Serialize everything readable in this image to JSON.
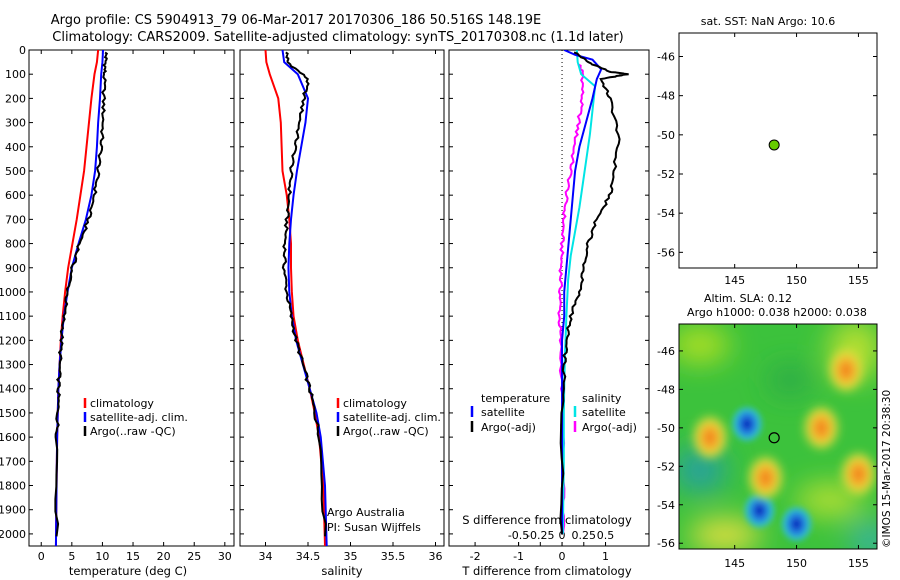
{
  "figure": {
    "title_line1": "Argo profile: CS 5904913_79 06-Mar-2017 20170306_186 50.516S 148.19E",
    "title_line2": "Climatology: CARS2009. Satellite-adjusted climatology: synTS_20170308.nc (1.1d later)",
    "credit": "Argo Australia",
    "pi": "PI: Susan Wijffels",
    "watermark": "©IMOS 15-Mar-2017 20:38:30"
  },
  "colors": {
    "climatology": "#ff0000",
    "satellite": "#0000ff",
    "argo": "#000000",
    "sal_satellite": "#00e5e5",
    "sal_argo": "#ff00ff",
    "float_marker": "#66cc00"
  },
  "chart_data": [
    {
      "id": "temperature",
      "type": "line",
      "xlabel": "temperature (deg C)",
      "xlim": [
        -2,
        31.5
      ],
      "ylim": [
        2050,
        0
      ],
      "xticks": [
        0,
        5,
        10,
        15,
        20,
        25,
        30
      ],
      "yticks": [
        0,
        100,
        200,
        300,
        400,
        500,
        600,
        700,
        800,
        900,
        1000,
        1100,
        1200,
        1300,
        1400,
        1500,
        1600,
        1700,
        1800,
        1900,
        2000
      ],
      "legend": [
        "climatology",
        "satellite-adj. clim.",
        "Argo(..raw -QC)"
      ],
      "series": [
        {
          "name": "climatology",
          "color": "#ff0000",
          "x": [
            9.3,
            9.1,
            8.7,
            8.2,
            7.8,
            7.4,
            7.0,
            6.4,
            5.8,
            5.1,
            4.4,
            3.9,
            3.5,
            3.2,
            3.0,
            2.8,
            2.7,
            2.6,
            2.5,
            2.4
          ],
          "y": [
            0,
            50,
            100,
            200,
            300,
            400,
            500,
            600,
            700,
            800,
            900,
            1000,
            1100,
            1200,
            1300,
            1400,
            1500,
            1600,
            1800,
            2050
          ]
        },
        {
          "name": "satellite-adj. clim.",
          "color": "#0000ff",
          "x": [
            10.1,
            10.0,
            9.8,
            9.6,
            9.3,
            9.1,
            8.8,
            8.2,
            7.3,
            6.1,
            5.0,
            4.3,
            3.7,
            3.3,
            3.0,
            2.8,
            2.7,
            2.6,
            2.5,
            2.4
          ],
          "y": [
            0,
            50,
            100,
            200,
            300,
            400,
            500,
            600,
            700,
            800,
            900,
            1000,
            1100,
            1200,
            1300,
            1400,
            1500,
            1600,
            1800,
            2050
          ]
        },
        {
          "name": "Argo(..raw -QC)",
          "color": "#000000",
          "x": [
            10.6,
            10.5,
            10.3,
            10.2,
            10.1,
            9.8,
            9.3,
            8.7,
            7.7,
            6.3,
            5.1,
            4.3,
            3.7,
            3.3,
            3.0,
            2.8,
            2.7,
            2.6,
            2.5
          ],
          "y": [
            10,
            50,
            100,
            200,
            300,
            400,
            500,
            600,
            700,
            800,
            900,
            1000,
            1100,
            1200,
            1300,
            1400,
            1500,
            1600,
            2010
          ]
        }
      ]
    },
    {
      "id": "salinity",
      "type": "line",
      "xlabel": "salinity",
      "xlim": [
        33.7,
        36.1
      ],
      "ylim": [
        2050,
        0
      ],
      "xticks": [
        34,
        34.5,
        35,
        35.5,
        36
      ],
      "legend": [
        "climatology",
        "satellite-adj. clim.",
        "Argo(..raw -QC)"
      ],
      "series": [
        {
          "name": "climatology",
          "color": "#ff0000",
          "x": [
            34.0,
            34.01,
            34.05,
            34.15,
            34.18,
            34.19,
            34.2,
            34.25,
            34.28,
            34.3,
            34.3,
            34.31,
            34.33,
            34.38,
            34.45,
            34.52,
            34.58,
            34.63,
            34.68,
            34.7
          ],
          "y": [
            0,
            50,
            100,
            200,
            300,
            400,
            500,
            600,
            700,
            800,
            900,
            1000,
            1100,
            1200,
            1300,
            1400,
            1500,
            1600,
            1800,
            2050
          ]
        },
        {
          "name": "satellite-adj. clim.",
          "color": "#0000ff",
          "x": [
            34.2,
            34.22,
            34.38,
            34.5,
            34.47,
            34.42,
            34.37,
            34.33,
            34.3,
            34.28,
            34.27,
            34.28,
            34.31,
            34.36,
            34.44,
            34.52,
            34.6,
            34.65,
            34.7,
            34.72
          ],
          "y": [
            0,
            50,
            100,
            200,
            300,
            400,
            500,
            600,
            700,
            800,
            900,
            1000,
            1100,
            1200,
            1300,
            1400,
            1500,
            1600,
            1800,
            2050
          ]
        },
        {
          "name": "Argo(..raw -QC)",
          "color": "#000000",
          "x": [
            34.25,
            34.26,
            34.5,
            34.45,
            34.4,
            34.35,
            34.3,
            34.28,
            34.25,
            34.23,
            34.22,
            34.25,
            34.3,
            34.36,
            34.44,
            34.52,
            34.58,
            34.64,
            34.7
          ],
          "y": [
            10,
            50,
            120,
            200,
            300,
            400,
            500,
            600,
            700,
            800,
            900,
            1000,
            1100,
            1200,
            1300,
            1400,
            1500,
            1600,
            2010
          ]
        }
      ]
    },
    {
      "id": "difference",
      "type": "line",
      "xlabel": "T difference from climatology",
      "xlabel2": "S difference from climatology",
      "xlim": [
        -2.6,
        2.0
      ],
      "ylim": [
        2050,
        0
      ],
      "xticks": [
        -2,
        -1,
        0,
        1
      ],
      "xticklabels": [
        "-2",
        "-1",
        "0",
        "1"
      ],
      "sticks": [
        -0.5,
        -0.25,
        0,
        0.25,
        0.5
      ],
      "sticklabels": [
        "-0.5",
        "-0.25",
        "0",
        "0.25",
        "0.5"
      ],
      "legend_temperature": [
        "temperature",
        "satellite",
        "Argo(-adj)"
      ],
      "legend_salinity": [
        "salinity",
        "satellite",
        "Argo(-adj)"
      ],
      "series": [
        {
          "name": "temperature satellite",
          "color": "#0000ff",
          "x": [
            0.05,
            0.3,
            0.7,
            0.9,
            0.8,
            0.7,
            0.55,
            0.4,
            0.3,
            0.25,
            0.2,
            0.15,
            0.1,
            0.05,
            0.05,
            0.0,
            0.0,
            0.0
          ],
          "y": [
            0,
            20,
            40,
            80,
            120,
            200,
            300,
            400,
            500,
            600,
            700,
            800,
            900,
            1000,
            1100,
            1200,
            1500,
            2000
          ]
        },
        {
          "name": "temperature Argo(-adj)",
          "color": "#000000",
          "x": [
            0.3,
            0.6,
            1.1,
            1.5,
            0.9,
            1.1,
            1.3,
            1.2,
            1.1,
            0.8,
            0.6,
            0.5,
            0.4,
            0.2,
            0.1,
            0.05,
            0.0,
            0.0
          ],
          "y": [
            10,
            50,
            90,
            100,
            120,
            200,
            350,
            500,
            600,
            700,
            800,
            900,
            1000,
            1100,
            1200,
            1300,
            1500,
            2000
          ]
        },
        {
          "name": "salinity satellite",
          "color": "#00e5e5",
          "x": [
            0.17,
            0.18,
            0.22,
            0.38,
            0.35,
            0.32,
            0.28,
            0.24,
            0.2,
            0.15,
            0.1,
            0.07,
            0.05,
            0.03,
            0.02,
            0.02,
            0.01
          ],
          "y": [
            0,
            50,
            100,
            150,
            250,
            350,
            450,
            550,
            650,
            750,
            850,
            950,
            1100,
            1300,
            1500,
            1700,
            2000
          ]
        },
        {
          "name": "salinity Argo(-adj)",
          "color": "#ff00ff",
          "x": [
            0.2,
            0.24,
            0.23,
            0.19,
            0.14,
            0.1,
            0.05,
            0.02,
            0.0,
            -0.01,
            -0.02,
            -0.03,
            -0.02,
            0.0,
            0.01,
            0.01
          ],
          "y": [
            60,
            100,
            200,
            300,
            400,
            500,
            600,
            700,
            800,
            900,
            1000,
            1100,
            1200,
            1400,
            1700,
            2000
          ]
        }
      ]
    },
    {
      "id": "sst_map",
      "type": "scatter",
      "title": "sat. SST: NaN Argo: 10.6",
      "xlim": [
        140.5,
        156.5
      ],
      "ylim": [
        -56.8,
        -44.8
      ],
      "xticks": [
        145,
        150,
        155
      ],
      "yticks": [
        -46,
        -48,
        -50,
        -52,
        -54,
        -56
      ],
      "points": [
        {
          "x": 148.19,
          "y": -50.516
        }
      ]
    },
    {
      "id": "sla_map",
      "type": "heatmap",
      "title_line1": "Altim. SLA: 0.12",
      "title_line2": "Argo h1000: 0.038 h2000: 0.038",
      "xlim": [
        140.5,
        156.5
      ],
      "ylim": [
        -56.3,
        -44.6
      ],
      "xticks": [
        145,
        150,
        155
      ],
      "yticks": [
        -46,
        -48,
        -50,
        -52,
        -54,
        -56
      ],
      "points": [
        {
          "x": 148.19,
          "y": -50.516
        }
      ],
      "features": [
        {
          "kind": "low",
          "x": 146.0,
          "y": -49.8
        },
        {
          "kind": "low",
          "x": 150.0,
          "y": -55.0
        },
        {
          "kind": "low",
          "x": 147.0,
          "y": -54.3
        },
        {
          "kind": "high",
          "x": 152.0,
          "y": -50.0
        },
        {
          "kind": "high",
          "x": 143.0,
          "y": -50.5
        },
        {
          "kind": "high",
          "x": 155.0,
          "y": -52.4
        },
        {
          "kind": "high",
          "x": 147.5,
          "y": -52.6
        },
        {
          "kind": "high",
          "x": 154.0,
          "y": -47.0
        }
      ]
    }
  ]
}
